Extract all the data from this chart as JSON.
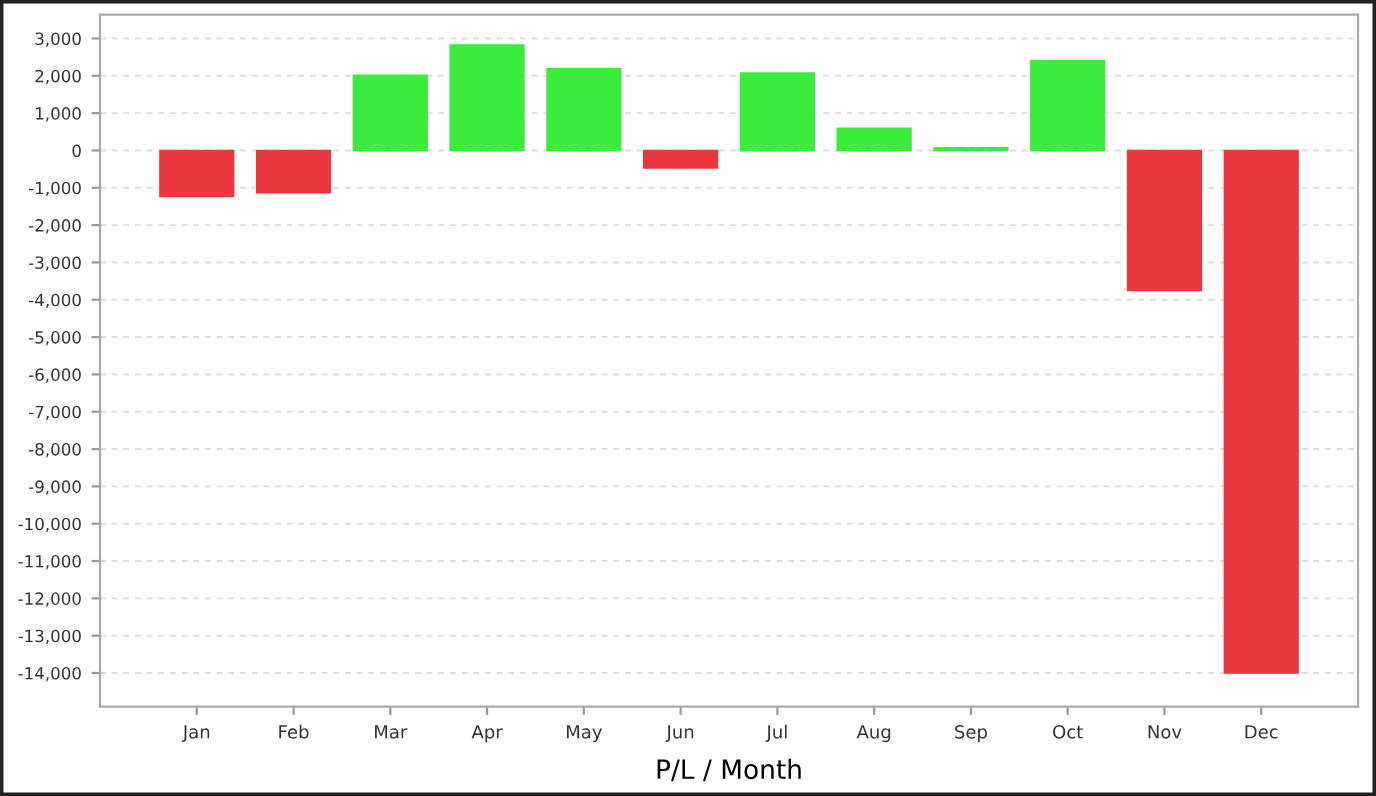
{
  "chart_data": {
    "type": "bar",
    "xlabel": "P/L / Month",
    "categories": [
      "Jan",
      "Feb",
      "Mar",
      "Apr",
      "May",
      "Jun",
      "Jul",
      "Aug",
      "Sep",
      "Oct",
      "Nov",
      "Dec"
    ],
    "values": [
      -1230,
      -1130,
      2010,
      2820,
      2190,
      -470,
      2070,
      590,
      70,
      2410,
      -3750,
      -14000
    ],
    "colors": [
      "#e8383d",
      "#e8383d",
      "#3deb3d",
      "#3deb3d",
      "#3deb3d",
      "#e8383d",
      "#3deb3d",
      "#3deb3d",
      "#3deb3d",
      "#3deb3d",
      "#e8383d",
      "#e8383d"
    ],
    "ylim": [
      -14900,
      3640
    ],
    "yticks": [
      {
        "value": -14000,
        "label": "-14,000"
      },
      {
        "value": -13000,
        "label": "-13,000"
      },
      {
        "value": -12000,
        "label": "-12,000"
      },
      {
        "value": -11000,
        "label": "-11,000"
      },
      {
        "value": -10000,
        "label": "-10,000"
      },
      {
        "value": -9000,
        "label": "-9,000"
      },
      {
        "value": -8000,
        "label": "-8,000"
      },
      {
        "value": -7000,
        "label": "-7,000"
      },
      {
        "value": -6000,
        "label": "-6,000"
      },
      {
        "value": -5000,
        "label": "-5,000"
      },
      {
        "value": -4000,
        "label": "-4,000"
      },
      {
        "value": -3000,
        "label": "-3,000"
      },
      {
        "value": -2000,
        "label": "-2,000"
      },
      {
        "value": -1000,
        "label": "-1,000"
      },
      0,
      {
        "value": 1000,
        "label": "1,000"
      },
      {
        "value": 2000,
        "label": "2,000"
      },
      {
        "value": 3000,
        "label": "3,000"
      }
    ],
    "grid": "y",
    "legend": false
  }
}
